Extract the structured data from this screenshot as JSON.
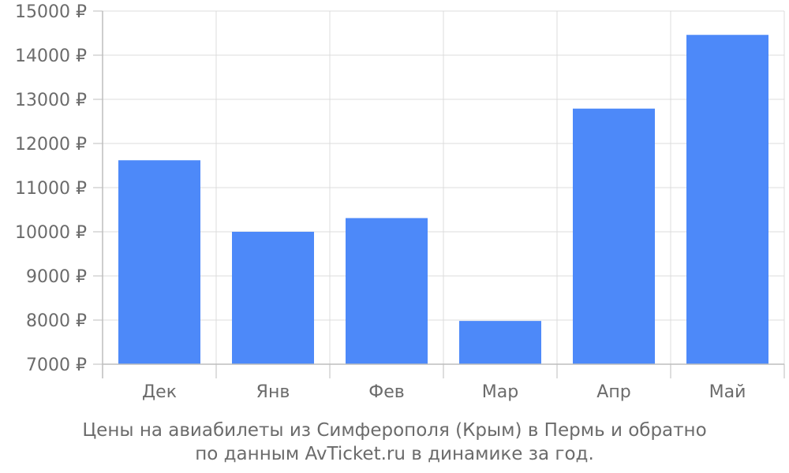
{
  "chart_data": {
    "type": "bar",
    "categories": [
      "Дек",
      "Янв",
      "Фев",
      "Мар",
      "Апр",
      "Май"
    ],
    "values": [
      11620,
      10000,
      10310,
      7980,
      12790,
      14460
    ],
    "ylim": [
      7000,
      15000
    ],
    "yticks": [
      "7000 ₽",
      "8000 ₽",
      "9000 ₽",
      "10000 ₽",
      "11000 ₽",
      "12000 ₽",
      "13000 ₽",
      "14000 ₽",
      "15000 ₽"
    ],
    "grid": true,
    "bar_color": "#4d89f9",
    "caption_line1": "Цены на авиабилеты из Симферополя (Крым) в Пермь и обратно",
    "caption_line2": "по данным AvTicket.ru в динамике за год."
  }
}
